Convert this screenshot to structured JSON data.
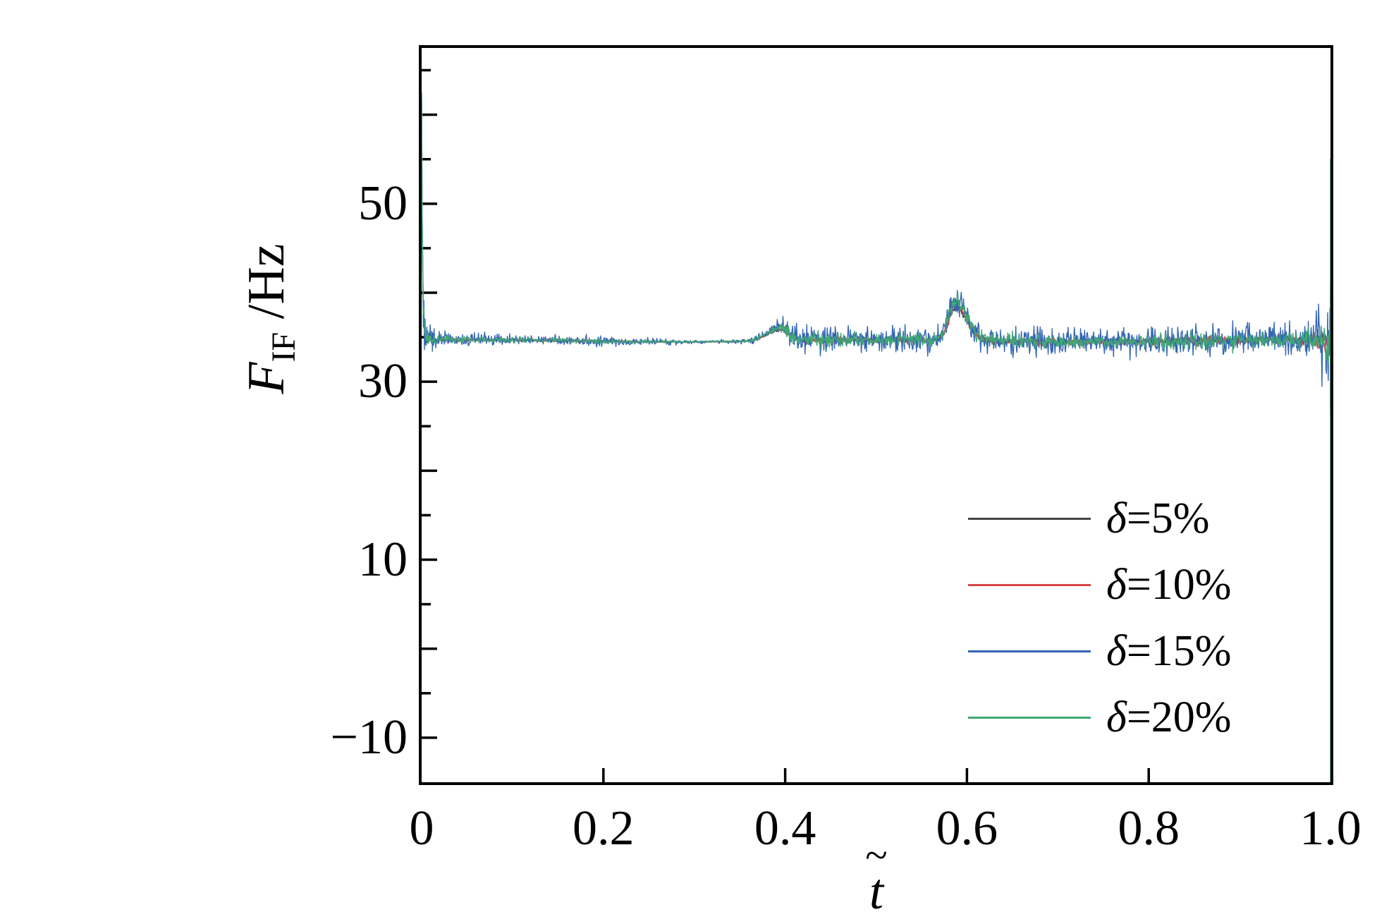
{
  "chart_data": {
    "type": "line",
    "title": "",
    "xlabel": "t̃",
    "ylabel": "F_IF /Hz",
    "xlabel_parts": {
      "accent": "~",
      "base": "t"
    },
    "ylabel_parts": {
      "symbol": "F",
      "subscript": "IF",
      "rest": " /Hz"
    },
    "xlim": [
      0,
      1
    ],
    "ylim": [
      -15,
      67.5
    ],
    "grid": false,
    "legend_position": "inside lower right",
    "axis_color": "#000000",
    "x_ticks_major": [
      0.2,
      0.4,
      0.6,
      0.8
    ],
    "x_tick_labels": [
      {
        "v": 0.0,
        "label": "0"
      },
      {
        "v": 0.2,
        "label": "0.2"
      },
      {
        "v": 0.4,
        "label": "0.4"
      },
      {
        "v": 0.6,
        "label": "0.6"
      },
      {
        "v": 0.8,
        "label": "0.8"
      },
      {
        "v": 1.0,
        "label": "1.0"
      }
    ],
    "y_ticks_major": [
      -10,
      0,
      10,
      20,
      30,
      40,
      50,
      60
    ],
    "y_ticks_minor": [
      -5,
      5,
      15,
      25,
      35,
      45,
      55,
      65
    ],
    "y_tick_labels": [
      {
        "v": -10,
        "label": "−10"
      },
      {
        "v": 10,
        "label": "10"
      },
      {
        "v": 30,
        "label": "30"
      },
      {
        "v": 50,
        "label": "50"
      }
    ],
    "baseline_hz": 34.6,
    "wobble": {
      "amp": 0.12,
      "freq": 2.2,
      "phase": 0.8
    },
    "bumps": [
      {
        "center": 0.396,
        "height": 1.5,
        "sigma_l": 0.015,
        "sigma_r": 0.009
      },
      {
        "center": 0.588,
        "height": 4.2,
        "sigma_l": 0.008,
        "sigma_r": 0.012
      }
    ],
    "ring": {
      "amp": 1.5,
      "tau": 0.007,
      "freq": 900
    },
    "start_tau": 0.001,
    "n_points": 1600,
    "noise_envelope": [
      [
        0.0,
        0.4
      ],
      [
        0.01,
        0.3
      ],
      [
        0.03,
        0.18
      ],
      [
        0.08,
        0.15
      ],
      [
        0.2,
        0.13
      ],
      [
        0.27,
        0.08
      ],
      [
        0.32,
        0.05
      ],
      [
        0.36,
        0.08
      ],
      [
        0.385,
        0.15
      ],
      [
        0.4,
        0.35
      ],
      [
        0.43,
        0.4
      ],
      [
        0.47,
        0.35
      ],
      [
        0.52,
        0.33
      ],
      [
        0.56,
        0.38
      ],
      [
        0.6,
        0.42
      ],
      [
        0.64,
        0.35
      ],
      [
        0.68,
        0.38
      ],
      [
        0.71,
        0.42
      ],
      [
        0.74,
        0.32
      ],
      [
        0.78,
        0.38
      ],
      [
        0.82,
        0.45
      ],
      [
        0.86,
        0.5
      ],
      [
        0.89,
        0.45
      ],
      [
        0.92,
        0.4
      ],
      [
        0.95,
        0.38
      ],
      [
        0.97,
        0.5
      ],
      [
        0.985,
        0.8
      ],
      [
        0.995,
        1.3
      ],
      [
        1.0,
        1.5
      ]
    ],
    "series": [
      {
        "name": "δ=5%",
        "label_sym": "δ",
        "label_rest": "=5%",
        "color": "#444444",
        "seed": 101,
        "noise_scale": 0.42,
        "bump_scale": 0.85,
        "start_peak": 57.0,
        "end_top": 38.5,
        "end_bottom": 29.5
      },
      {
        "name": "δ=10%",
        "label_sym": "δ",
        "label_rest": "=10%",
        "color": "#d84545",
        "seed": 202,
        "noise_scale": 0.55,
        "bump_scale": 0.92,
        "start_peak": 61.5,
        "end_top": 40.0,
        "end_bottom": 27.0
      },
      {
        "name": "δ=15%",
        "label_sym": "δ",
        "label_rest": "=15%",
        "color": "#3465b4",
        "seed": 303,
        "noise_scale": 1.9,
        "bump_scale": 1.08,
        "start_peak": 59.5,
        "end_top": 41.0,
        "end_bottom": 26.0
      },
      {
        "name": "δ=20%",
        "label_sym": "δ",
        "label_rest": "=20%",
        "color": "#3fa873",
        "seed": 404,
        "noise_scale": 1.0,
        "bump_scale": 1.0,
        "start_peak": 62.5,
        "end_top": 55.0,
        "end_bottom": -15.0
      }
    ],
    "style": {
      "line_width": 1.4,
      "tick_width": 3.5,
      "tick_len_major": 22,
      "tick_len_minor": 13,
      "x_tick_len": 20
    }
  }
}
